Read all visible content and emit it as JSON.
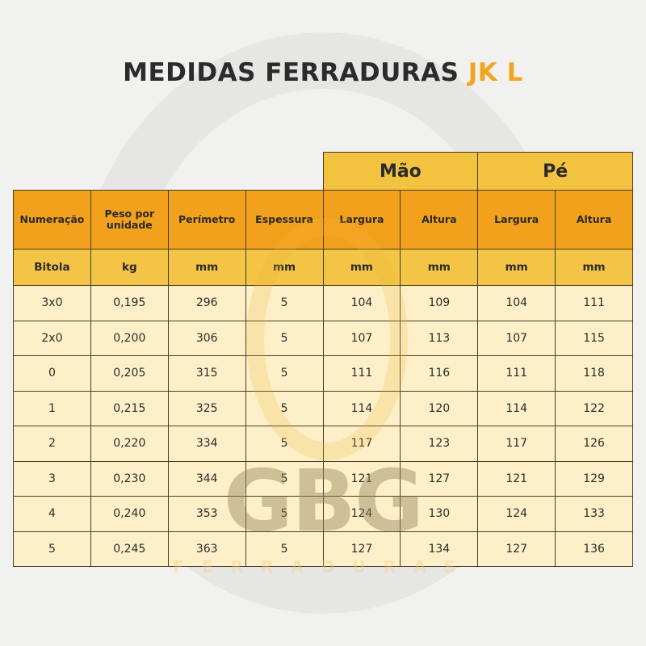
{
  "title": {
    "main": "MEDIDAS FERRADURAS",
    "accent": "JK L"
  },
  "groups": [
    "Mão",
    "Pé"
  ],
  "headers": [
    "Numeração",
    "Peso por unidade",
    "Perímetro",
    "Espessura",
    "Largura",
    "Altura",
    "Largura",
    "Altura"
  ],
  "units": [
    "Bitola",
    "kg",
    "mm",
    "mm",
    "mm",
    "mm",
    "mm",
    "mm"
  ],
  "rows": [
    [
      "3x0",
      "0,195",
      "296",
      "5",
      "104",
      "109",
      "104",
      "111"
    ],
    [
      "2x0",
      "0,200",
      "306",
      "5",
      "107",
      "113",
      "107",
      "115"
    ],
    [
      "0",
      "0,205",
      "315",
      "5",
      "111",
      "116",
      "111",
      "118"
    ],
    [
      "1",
      "0,215",
      "325",
      "5",
      "114",
      "120",
      "114",
      "122"
    ],
    [
      "2",
      "0,220",
      "334",
      "5",
      "117",
      "123",
      "117",
      "126"
    ],
    [
      "3",
      "0,230",
      "344",
      "5",
      "121",
      "127",
      "121",
      "129"
    ],
    [
      "4",
      "0,240",
      "353",
      "5",
      "124",
      "130",
      "124",
      "133"
    ],
    [
      "5",
      "0,245",
      "363",
      "5",
      "127",
      "134",
      "127",
      "136"
    ]
  ],
  "watermark": {
    "logo": "GBG",
    "sub": "FERRADURAS"
  },
  "colors": {
    "accent": "#f2a51e",
    "header": "#f2a11d",
    "group": "#f3c23f",
    "cell": "#fdf0c8"
  }
}
